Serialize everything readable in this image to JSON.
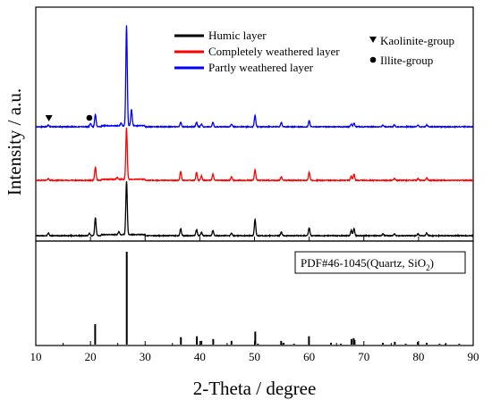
{
  "chart_data": {
    "type": "line",
    "xlabel": "2-Theta / degree",
    "ylabel": "Intensity / a.u.",
    "xlim": [
      10,
      90
    ],
    "x_ticks": [
      10,
      20,
      30,
      40,
      50,
      60,
      70,
      80,
      90
    ],
    "x_tick_labels": [
      "10",
      "20",
      "30",
      "40",
      "50",
      "60",
      "70",
      "80",
      "90"
    ],
    "grid": false,
    "legend_placement": "top-right",
    "series": [
      {
        "name": "Humic layer",
        "color": "#000000",
        "baseline": 0,
        "peaks": [
          {
            "x": 12.3,
            "y": 3
          },
          {
            "x": 19.8,
            "y": 3
          },
          {
            "x": 20.9,
            "y": 20
          },
          {
            "x": 25.2,
            "y": 3
          },
          {
            "x": 26.6,
            "y": 60
          },
          {
            "x": 36.5,
            "y": 8
          },
          {
            "x": 39.4,
            "y": 7
          },
          {
            "x": 40.3,
            "y": 4
          },
          {
            "x": 42.4,
            "y": 6
          },
          {
            "x": 45.8,
            "y": 3
          },
          {
            "x": 50.1,
            "y": 18
          },
          {
            "x": 54.9,
            "y": 4
          },
          {
            "x": 60.0,
            "y": 9
          },
          {
            "x": 67.7,
            "y": 6
          },
          {
            "x": 68.2,
            "y": 8
          },
          {
            "x": 73.5,
            "y": 2
          },
          {
            "x": 75.6,
            "y": 2
          },
          {
            "x": 79.9,
            "y": 2
          },
          {
            "x": 81.5,
            "y": 3
          }
        ]
      },
      {
        "name": "Completely weathered layer",
        "color": "#ff0000",
        "baseline": 0,
        "peaks": [
          {
            "x": 12.3,
            "y": 2
          },
          {
            "x": 20.9,
            "y": 15
          },
          {
            "x": 24.9,
            "y": 2
          },
          {
            "x": 26.6,
            "y": 58
          },
          {
            "x": 36.5,
            "y": 10
          },
          {
            "x": 39.4,
            "y": 9
          },
          {
            "x": 40.3,
            "y": 5
          },
          {
            "x": 42.4,
            "y": 7
          },
          {
            "x": 45.8,
            "y": 4
          },
          {
            "x": 50.1,
            "y": 12
          },
          {
            "x": 54.9,
            "y": 4
          },
          {
            "x": 60.0,
            "y": 9
          },
          {
            "x": 67.7,
            "y": 5
          },
          {
            "x": 68.2,
            "y": 7
          },
          {
            "x": 75.6,
            "y": 2
          },
          {
            "x": 79.9,
            "y": 2
          },
          {
            "x": 81.5,
            "y": 3
          }
        ]
      },
      {
        "name": "Partly weathered layer",
        "color": "#0000ff",
        "baseline": 0,
        "peaks": [
          {
            "x": 12.3,
            "y": 2
          },
          {
            "x": 20.0,
            "y": 4
          },
          {
            "x": 20.9,
            "y": 14
          },
          {
            "x": 25.6,
            "y": 3
          },
          {
            "x": 26.6,
            "y": 112
          },
          {
            "x": 27.5,
            "y": 18
          },
          {
            "x": 36.5,
            "y": 5
          },
          {
            "x": 39.4,
            "y": 5
          },
          {
            "x": 40.3,
            "y": 3
          },
          {
            "x": 42.4,
            "y": 5
          },
          {
            "x": 45.8,
            "y": 3
          },
          {
            "x": 50.1,
            "y": 13
          },
          {
            "x": 54.9,
            "y": 5
          },
          {
            "x": 60.0,
            "y": 7
          },
          {
            "x": 67.7,
            "y": 3
          },
          {
            "x": 68.2,
            "y": 4
          },
          {
            "x": 73.5,
            "y": 2
          },
          {
            "x": 75.6,
            "y": 2
          },
          {
            "x": 79.9,
            "y": 2
          },
          {
            "x": 81.5,
            "y": 2
          }
        ]
      }
    ],
    "markers": [
      {
        "name": "Kaolinite-group",
        "symbol": "triangle-down",
        "x": 12.4
      },
      {
        "name": "Illite-group",
        "symbol": "circle",
        "x": 19.8
      }
    ],
    "reference": {
      "label_main": "PDF#46-1045(Quartz, SiO",
      "label_sub": "2",
      "label_tail": ")",
      "color": "#000000",
      "lines": [
        {
          "x": 20.86,
          "y": 22
        },
        {
          "x": 26.64,
          "y": 100
        },
        {
          "x": 36.54,
          "y": 8
        },
        {
          "x": 39.46,
          "y": 9
        },
        {
          "x": 40.29,
          "y": 4
        },
        {
          "x": 42.45,
          "y": 6
        },
        {
          "x": 45.79,
          "y": 4
        },
        {
          "x": 50.14,
          "y": 14
        },
        {
          "x": 50.62,
          "y": 1
        },
        {
          "x": 54.87,
          "y": 4
        },
        {
          "x": 55.33,
          "y": 2
        },
        {
          "x": 57.23,
          "y": 1
        },
        {
          "x": 59.96,
          "y": 9
        },
        {
          "x": 63.99,
          "y": 2
        },
        {
          "x": 65.79,
          "y": 1
        },
        {
          "x": 67.74,
          "y": 6
        },
        {
          "x": 68.14,
          "y": 7
        },
        {
          "x": 68.31,
          "y": 5
        },
        {
          "x": 73.47,
          "y": 2
        },
        {
          "x": 75.66,
          "y": 3
        },
        {
          "x": 77.67,
          "y": 1
        },
        {
          "x": 79.87,
          "y": 3
        },
        {
          "x": 81.49,
          "y": 2
        },
        {
          "x": 83.84,
          "y": 1
        },
        {
          "x": 84.95,
          "y": 1
        },
        {
          "x": 87.44,
          "y": 1
        }
      ]
    }
  }
}
